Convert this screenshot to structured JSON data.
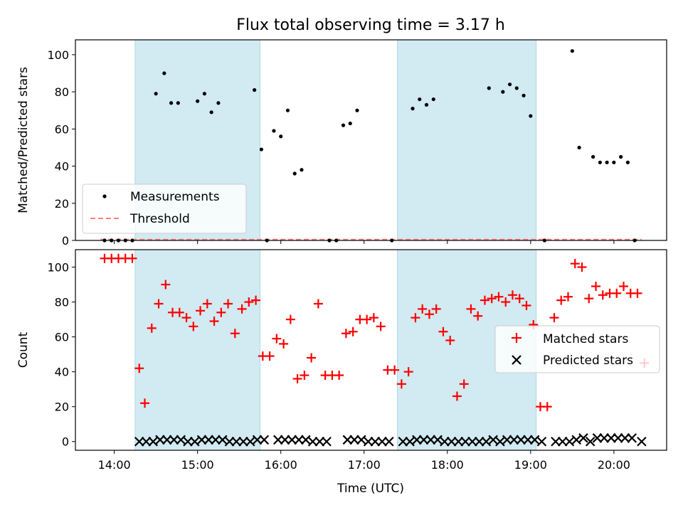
{
  "title": "Flux total observing time = 3.17 h",
  "colors": {
    "shade": "#add8e6",
    "measurement": "#000000",
    "threshold": "#ff7f7f",
    "matched": "#ff0000",
    "predicted": "#000000"
  },
  "chart_data": [
    {
      "type": "scatter",
      "panel": "top",
      "ylabel": "Matched/Predicted stars",
      "ylim": [
        0,
        108
      ],
      "yticks": [
        0,
        20,
        40,
        60,
        80,
        100
      ],
      "xlim": [
        "13:32",
        "20:38"
      ],
      "xticks": [
        "14:00",
        "15:00",
        "16:00",
        "17:00",
        "18:00",
        "19:00",
        "20:00"
      ],
      "shaded_intervals": [
        [
          "14:15",
          "15:45"
        ],
        [
          "17:24",
          "19:04"
        ]
      ],
      "legend": {
        "placement": "lower-left",
        "entries": [
          "Measurements",
          "Threshold"
        ]
      },
      "threshold": {
        "name": "Threshold",
        "value": 0.5,
        "x_range": [
          "13:50",
          "20:20"
        ]
      },
      "series": [
        {
          "name": "Measurements",
          "marker": "dot",
          "points": [
            [
              "13:53",
              0
            ],
            [
              "13:58",
              0
            ],
            [
              "14:03",
              0
            ],
            [
              "14:08",
              0
            ],
            [
              "14:13",
              0
            ],
            [
              "14:30",
              79
            ],
            [
              "14:36",
              90
            ],
            [
              "14:41",
              74
            ],
            [
              "14:46",
              74
            ],
            [
              "15:00",
              75
            ],
            [
              "15:05",
              79
            ],
            [
              "15:10",
              69
            ],
            [
              "15:15",
              74
            ],
            [
              "15:41",
              81
            ],
            [
              "15:46",
              49
            ],
            [
              "15:50",
              0
            ],
            [
              "15:55",
              59
            ],
            [
              "16:00",
              56
            ],
            [
              "16:05",
              70
            ],
            [
              "16:10",
              36
            ],
            [
              "16:15",
              38
            ],
            [
              "16:35",
              0
            ],
            [
              "16:40",
              0
            ],
            [
              "16:45",
              62
            ],
            [
              "16:50",
              63
            ],
            [
              "16:55",
              70
            ],
            [
              "17:20",
              0
            ],
            [
              "17:35",
              71
            ],
            [
              "17:40",
              76
            ],
            [
              "17:45",
              73
            ],
            [
              "17:50",
              76
            ],
            [
              "18:30",
              82
            ],
            [
              "18:40",
              80
            ],
            [
              "18:45",
              84
            ],
            [
              "18:50",
              82
            ],
            [
              "18:55",
              78
            ],
            [
              "19:00",
              67
            ],
            [
              "19:10",
              0
            ],
            [
              "19:30",
              102
            ],
            [
              "19:35",
              50
            ],
            [
              "19:45",
              45
            ],
            [
              "19:50",
              42
            ],
            [
              "19:55",
              42
            ],
            [
              "20:00",
              42
            ],
            [
              "20:05",
              45
            ],
            [
              "20:10",
              42
            ],
            [
              "20:15",
              0
            ]
          ]
        }
      ]
    },
    {
      "type": "scatter",
      "panel": "bottom",
      "ylabel": "Count",
      "xlabel": "Time (UTC)",
      "ylim": [
        -5,
        110
      ],
      "yticks": [
        0,
        20,
        40,
        60,
        80,
        100
      ],
      "xlim": [
        "13:32",
        "20:38"
      ],
      "xticks": [
        "14:00",
        "15:00",
        "16:00",
        "17:00",
        "18:00",
        "19:00",
        "20:00"
      ],
      "shaded_intervals": [
        [
          "14:15",
          "15:45"
        ],
        [
          "17:24",
          "19:04"
        ]
      ],
      "legend": {
        "placement": "center-right",
        "entries": [
          "Matched stars",
          "Predicted stars"
        ]
      },
      "series": [
        {
          "name": "Matched stars",
          "marker": "plus",
          "points": [
            [
              "13:53",
              105
            ],
            [
              "13:58",
              105
            ],
            [
              "14:03",
              105
            ],
            [
              "14:08",
              105
            ],
            [
              "14:13",
              105
            ],
            [
              "14:18",
              42
            ],
            [
              "14:22",
              22
            ],
            [
              "14:27",
              65
            ],
            [
              "14:32",
              79
            ],
            [
              "14:37",
              90
            ],
            [
              "14:42",
              74
            ],
            [
              "14:47",
              74
            ],
            [
              "14:52",
              71
            ],
            [
              "14:57",
              66
            ],
            [
              "15:02",
              75
            ],
            [
              "15:07",
              79
            ],
            [
              "15:12",
              69
            ],
            [
              "15:17",
              74
            ],
            [
              "15:22",
              79
            ],
            [
              "15:27",
              62
            ],
            [
              "15:32",
              76
            ],
            [
              "15:37",
              80
            ],
            [
              "15:42",
              81
            ],
            [
              "15:47",
              49
            ],
            [
              "15:52",
              49
            ],
            [
              "15:57",
              59
            ],
            [
              "16:02",
              56
            ],
            [
              "16:07",
              70
            ],
            [
              "16:12",
              36
            ],
            [
              "16:17",
              38
            ],
            [
              "16:22",
              48
            ],
            [
              "16:27",
              79
            ],
            [
              "16:32",
              38
            ],
            [
              "16:37",
              38
            ],
            [
              "16:42",
              38
            ],
            [
              "16:47",
              62
            ],
            [
              "16:52",
              63
            ],
            [
              "16:57",
              70
            ],
            [
              "17:02",
              70
            ],
            [
              "17:07",
              71
            ],
            [
              "17:12",
              66
            ],
            [
              "17:17",
              41
            ],
            [
              "17:22",
              41
            ],
            [
              "17:27",
              33
            ],
            [
              "17:32",
              40
            ],
            [
              "17:37",
              71
            ],
            [
              "17:42",
              76
            ],
            [
              "17:47",
              73
            ],
            [
              "17:52",
              76
            ],
            [
              "17:57",
              63
            ],
            [
              "18:02",
              58
            ],
            [
              "18:07",
              26
            ],
            [
              "18:12",
              33
            ],
            [
              "18:17",
              76
            ],
            [
              "18:22",
              72
            ],
            [
              "18:27",
              81
            ],
            [
              "18:32",
              82
            ],
            [
              "18:37",
              83
            ],
            [
              "18:42",
              80
            ],
            [
              "18:47",
              84
            ],
            [
              "18:52",
              82
            ],
            [
              "18:57",
              78
            ],
            [
              "19:02",
              67
            ],
            [
              "19:07",
              20
            ],
            [
              "19:12",
              20
            ],
            [
              "19:17",
              71
            ],
            [
              "19:22",
              81
            ],
            [
              "19:27",
              83
            ],
            [
              "19:32",
              102
            ],
            [
              "19:37",
              100
            ],
            [
              "19:42",
              82
            ],
            [
              "19:47",
              89
            ],
            [
              "19:52",
              84
            ],
            [
              "19:57",
              85
            ],
            [
              "20:02",
              85
            ],
            [
              "20:07",
              89
            ],
            [
              "20:12",
              85
            ],
            [
              "20:17",
              85
            ],
            [
              "20:22",
              45
            ]
          ]
        },
        {
          "name": "Predicted stars",
          "marker": "x",
          "points": [
            [
              "14:18",
              0
            ],
            [
              "14:23",
              0
            ],
            [
              "14:28",
              0
            ],
            [
              "14:33",
              1
            ],
            [
              "14:38",
              1
            ],
            [
              "14:43",
              1
            ],
            [
              "14:48",
              1
            ],
            [
              "14:53",
              0
            ],
            [
              "14:58",
              0
            ],
            [
              "15:03",
              1
            ],
            [
              "15:08",
              1
            ],
            [
              "15:13",
              1
            ],
            [
              "15:18",
              1
            ],
            [
              "15:23",
              0
            ],
            [
              "15:28",
              0
            ],
            [
              "15:33",
              0
            ],
            [
              "15:38",
              0
            ],
            [
              "15:43",
              1
            ],
            [
              "15:48",
              1
            ],
            [
              "15:58",
              1
            ],
            [
              "16:03",
              1
            ],
            [
              "16:08",
              1
            ],
            [
              "16:13",
              1
            ],
            [
              "16:18",
              1
            ],
            [
              "16:23",
              0
            ],
            [
              "16:28",
              0
            ],
            [
              "16:33",
              0
            ],
            [
              "16:48",
              1
            ],
            [
              "16:53",
              1
            ],
            [
              "16:58",
              1
            ],
            [
              "17:03",
              0
            ],
            [
              "17:08",
              0
            ],
            [
              "17:13",
              0
            ],
            [
              "17:18",
              0
            ],
            [
              "17:28",
              0
            ],
            [
              "17:33",
              0
            ],
            [
              "17:38",
              1
            ],
            [
              "17:43",
              1
            ],
            [
              "17:48",
              1
            ],
            [
              "17:53",
              1
            ],
            [
              "17:58",
              0
            ],
            [
              "18:03",
              0
            ],
            [
              "18:08",
              0
            ],
            [
              "18:13",
              0
            ],
            [
              "18:18",
              0
            ],
            [
              "18:23",
              0
            ],
            [
              "18:28",
              0
            ],
            [
              "18:33",
              1
            ],
            [
              "18:38",
              0
            ],
            [
              "18:43",
              1
            ],
            [
              "18:48",
              1
            ],
            [
              "18:53",
              1
            ],
            [
              "18:58",
              1
            ],
            [
              "19:03",
              1
            ],
            [
              "19:08",
              0
            ],
            [
              "19:18",
              0
            ],
            [
              "19:23",
              0
            ],
            [
              "19:28",
              0
            ],
            [
              "19:33",
              1
            ],
            [
              "19:38",
              2
            ],
            [
              "19:43",
              0
            ],
            [
              "19:48",
              2
            ],
            [
              "19:53",
              2
            ],
            [
              "19:58",
              2
            ],
            [
              "20:03",
              2
            ],
            [
              "20:08",
              2
            ],
            [
              "20:13",
              2
            ],
            [
              "20:20",
              0
            ]
          ]
        }
      ]
    }
  ]
}
